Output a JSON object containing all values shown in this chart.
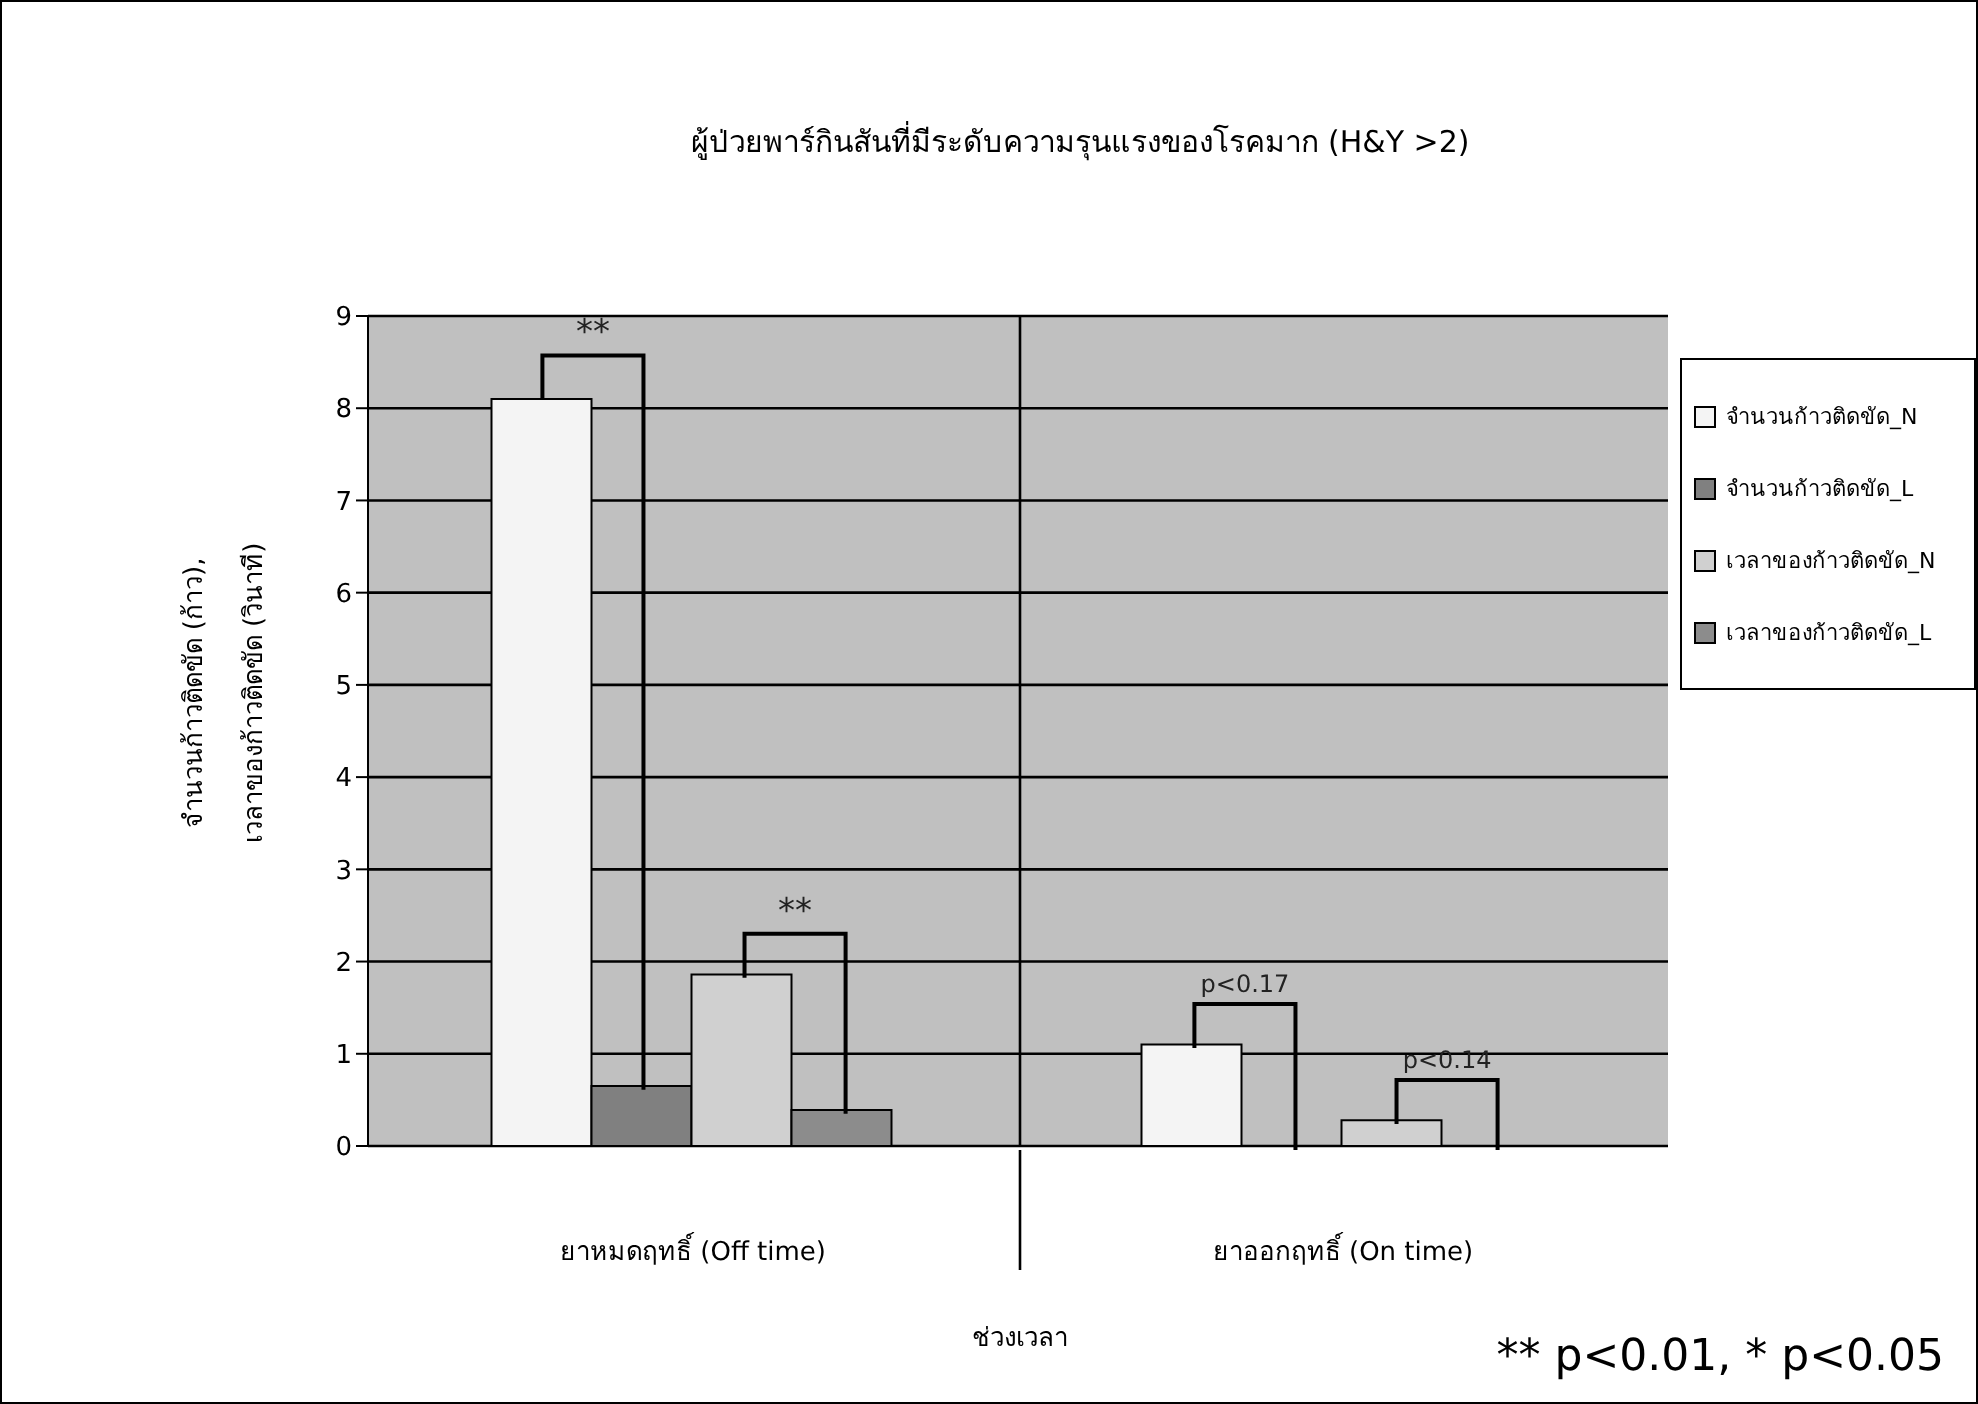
{
  "chart_data": {
    "type": "bar",
    "title": "ผู้ป่วยพาร์กินสันที่มีระดับความรุนแรงของโรคมาก (H&Y >2)",
    "xlabel": "ช่วงเวลา",
    "ylabel": "จำนวนก้าวติดขัด (ก้าว),\nเวลาของก้าวติดขัด (วินาที)",
    "categories": [
      "ยาหมดฤทธิ์ (Off time)",
      "ยาออกฤทธิ์ (On time)"
    ],
    "series": [
      {
        "name": "จำนวนก้าวติดขัด_N",
        "color": "#f4f4f4",
        "values": [
          8.1,
          1.1
        ]
      },
      {
        "name": "จำนวนก้าวติดขัด_L",
        "color": "#808080",
        "values": [
          0.65,
          null
        ]
      },
      {
        "name": "เวลาของก้าวติดขัด_N",
        "color": "#d0d0d0",
        "values": [
          1.86,
          0.28
        ]
      },
      {
        "name": "เวลาของก้าวติดขัด_L",
        "color": "#8c8c8c",
        "values": [
          0.39,
          null
        ]
      }
    ],
    "ylim": [
      0,
      9
    ],
    "yticks": [
      0,
      1,
      2,
      3,
      4,
      5,
      6,
      7,
      8,
      9
    ],
    "grid": true,
    "legend": "right",
    "annotations": [
      "**",
      "**",
      "p<0.17",
      "p<0.14",
      "** p<0.01, * p<0.05"
    ]
  }
}
